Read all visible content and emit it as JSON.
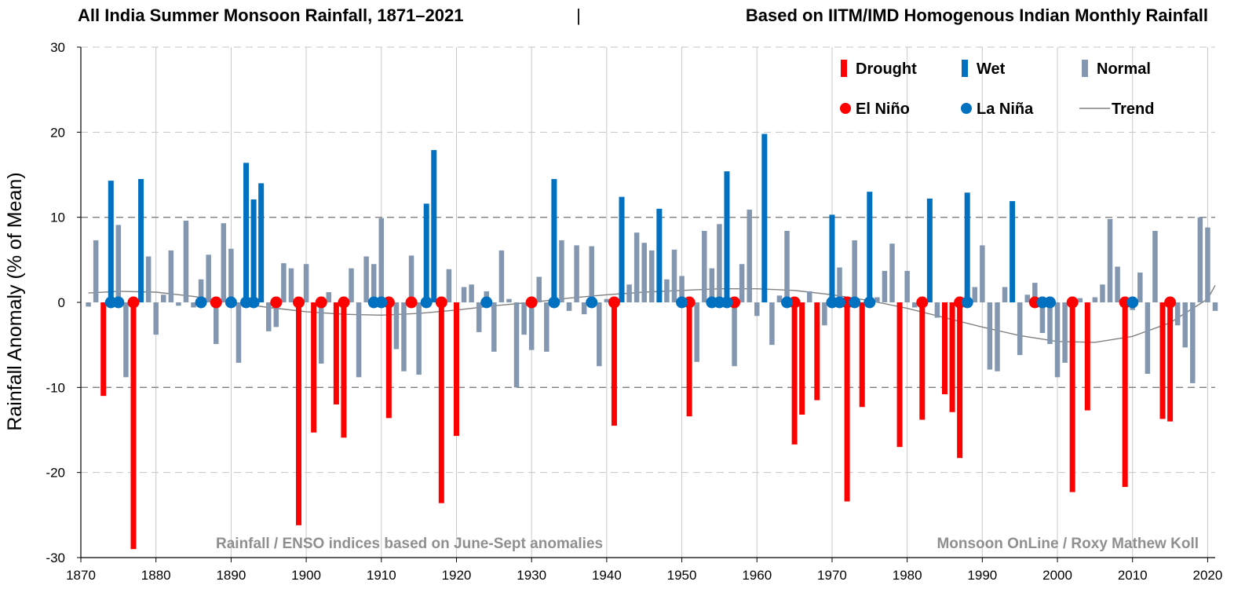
{
  "chart_data": {
    "type": "bar",
    "title": "All India Summer Monsoon Rainfall, 1871–2021",
    "separator": "|",
    "subtitle": "Based on IITM/IMD Homogenous Indian Monthly Rainfall",
    "xlabel": "",
    "ylabel": "Rainfall Anomaly (% of Mean)",
    "xlim": [
      1870,
      2021
    ],
    "ylim": [
      -30,
      30
    ],
    "x_ticks": [
      1870,
      1880,
      1890,
      1900,
      1910,
      1920,
      1930,
      1940,
      1950,
      1960,
      1970,
      1980,
      1990,
      2000,
      2010,
      2020
    ],
    "y_ticks": [
      30,
      20,
      10,
      0,
      -10,
      -20,
      -30
    ],
    "colors": {
      "drought": "#ff0000",
      "wet": "#0070c0",
      "normal": "#8497b0",
      "trend": "#808080",
      "grid": "#c8c8c8"
    },
    "legend": {
      "position": "top-right",
      "drought": "Drought",
      "wet": "Wet",
      "normal": "Normal",
      "el_nino": "El Niño",
      "la_nina": "La Niña",
      "trend": "Trend"
    },
    "annotations": {
      "left_note": "Rainfall / ENSO indices based on June-Sept anomalies",
      "right_note": "Monsoon OnLine / Roxy Mathew Koll"
    },
    "series": [
      {
        "name": "Rainfall anomaly",
        "x": [
          1871,
          1872,
          1873,
          1874,
          1875,
          1876,
          1877,
          1878,
          1879,
          1880,
          1881,
          1882,
          1883,
          1884,
          1885,
          1886,
          1887,
          1888,
          1889,
          1890,
          1891,
          1892,
          1893,
          1894,
          1895,
          1896,
          1897,
          1898,
          1899,
          1900,
          1901,
          1902,
          1903,
          1904,
          1905,
          1906,
          1907,
          1908,
          1909,
          1910,
          1911,
          1912,
          1913,
          1914,
          1915,
          1916,
          1917,
          1918,
          1919,
          1920,
          1921,
          1922,
          1923,
          1924,
          1925,
          1926,
          1927,
          1928,
          1929,
          1930,
          1931,
          1932,
          1933,
          1934,
          1935,
          1936,
          1937,
          1938,
          1939,
          1940,
          1941,
          1942,
          1943,
          1944,
          1945,
          1946,
          1947,
          1948,
          1949,
          1950,
          1951,
          1952,
          1953,
          1954,
          1955,
          1956,
          1957,
          1958,
          1959,
          1960,
          1961,
          1962,
          1963,
          1964,
          1965,
          1966,
          1967,
          1968,
          1969,
          1970,
          1971,
          1972,
          1973,
          1974,
          1975,
          1976,
          1977,
          1978,
          1979,
          1980,
          1981,
          1982,
          1983,
          1984,
          1985,
          1986,
          1987,
          1988,
          1989,
          1990,
          1991,
          1992,
          1993,
          1994,
          1995,
          1996,
          1997,
          1998,
          1999,
          2000,
          2001,
          2002,
          2003,
          2004,
          2005,
          2006,
          2007,
          2008,
          2009,
          2010,
          2011,
          2012,
          2013,
          2014,
          2015,
          2016,
          2017,
          2018,
          2019,
          2020,
          2021
        ],
        "values": [
          -0.5,
          7.3,
          -11,
          14.3,
          9.1,
          -8.8,
          -29,
          14.5,
          5.4,
          -3.8,
          0.9,
          6.1,
          -0.4,
          9.6,
          -0.6,
          2.7,
          5.6,
          -4.9,
          9.3,
          6.3,
          -7.1,
          16.4,
          12.1,
          14.0,
          -3.4,
          -2.9,
          4.6,
          4.0,
          -26.2,
          4.5,
          -15.3,
          -7.2,
          1.2,
          -12.0,
          -15.9,
          4.0,
          -8.8,
          5.4,
          4.5,
          9.9,
          -13.6,
          -5.5,
          -8.1,
          5.5,
          -8.5,
          11.6,
          17.9,
          -23.6,
          3.9,
          -15.7,
          1.8,
          2.1,
          -3.5,
          1.3,
          -5.8,
          6.1,
          0.4,
          -10.0,
          -3.8,
          -5.6,
          3.0,
          -5.8,
          14.5,
          7.3,
          -1.0,
          6.7,
          -1.4,
          6.6,
          -7.5,
          0.4,
          -14.5,
          12.4,
          2.1,
          8.2,
          7.0,
          6.1,
          11.0,
          2.7,
          6.2,
          3.1,
          -13.4,
          -7.0,
          8.4,
          4.0,
          9.2,
          15.4,
          -7.5,
          4.5,
          10.9,
          -1.6,
          19.8,
          -5.0,
          0.8,
          8.4,
          -16.7,
          -13.2,
          1.3,
          -11.5,
          -2.7,
          10.3,
          4.1,
          -23.4,
          7.3,
          -12.3,
          13.0,
          0.6,
          3.7,
          6.9,
          -17.0,
          3.7,
          -0.6,
          -13.8,
          12.2,
          -1.8,
          -10.8,
          -12.9,
          -18.3,
          12.9,
          1.8,
          6.7,
          -7.9,
          -8.1,
          1.8,
          11.9,
          -6.2,
          0.9,
          2.3,
          -3.6,
          -4.9,
          -8.8,
          -7.1,
          -22.3,
          0.5,
          -12.7,
          0.6,
          2.1,
          9.8,
          4.2,
          -21.7,
          -0.9,
          3.5,
          -8.4,
          8.4,
          -13.7,
          -14.0,
          -2.7,
          -5.3,
          -9.5,
          10.0,
          8.8,
          -1.0
        ],
        "category": [
          "N",
          "N",
          "D",
          "W",
          "N",
          "N",
          "D",
          "W",
          "N",
          "N",
          "N",
          "N",
          "N",
          "N",
          "N",
          "N",
          "N",
          "N",
          "N",
          "N",
          "N",
          "W",
          "W",
          "W",
          "N",
          "N",
          "N",
          "N",
          "D",
          "N",
          "D",
          "N",
          "N",
          "D",
          "D",
          "N",
          "N",
          "N",
          "N",
          "N",
          "D",
          "N",
          "N",
          "N",
          "N",
          "W",
          "W",
          "D",
          "N",
          "D",
          "N",
          "N",
          "N",
          "N",
          "N",
          "N",
          "N",
          "N",
          "N",
          "N",
          "N",
          "N",
          "W",
          "N",
          "N",
          "N",
          "N",
          "N",
          "N",
          "N",
          "D",
          "W",
          "N",
          "N",
          "N",
          "N",
          "W",
          "N",
          "N",
          "N",
          "D",
          "N",
          "N",
          "N",
          "N",
          "W",
          "N",
          "N",
          "N",
          "N",
          "W",
          "N",
          "N",
          "N",
          "D",
          "D",
          "N",
          "D",
          "N",
          "W",
          "N",
          "D",
          "N",
          "D",
          "W",
          "N",
          "N",
          "N",
          "D",
          "N",
          "N",
          "D",
          "W",
          "N",
          "D",
          "D",
          "D",
          "W",
          "N",
          "N",
          "N",
          "N",
          "N",
          "W",
          "N",
          "N",
          "N",
          "N",
          "N",
          "N",
          "N",
          "D",
          "N",
          "D",
          "N",
          "N",
          "N",
          "N",
          "D",
          "N",
          "N",
          "N",
          "N",
          "D",
          "D",
          "N",
          "N",
          "N",
          "N",
          "N",
          "N"
        ]
      },
      {
        "name": "El Niño",
        "x": [
          1877,
          1888,
          1896,
          1899,
          1902,
          1905,
          1911,
          1914,
          1918,
          1930,
          1941,
          1951,
          1957,
          1965,
          1972,
          1982,
          1987,
          1997,
          2002,
          2009,
          2015
        ]
      },
      {
        "name": "La Niña",
        "x": [
          1874,
          1875,
          1886,
          1890,
          1892,
          1893,
          1909,
          1910,
          1916,
          1924,
          1933,
          1938,
          1950,
          1954,
          1955,
          1956,
          1964,
          1970,
          1971,
          1973,
          1975,
          1988,
          1998,
          1999,
          2010
        ]
      },
      {
        "name": "Trend",
        "x": [
          1871,
          1875,
          1880,
          1885,
          1890,
          1895,
          1900,
          1905,
          1910,
          1915,
          1920,
          1925,
          1930,
          1935,
          1940,
          1945,
          1950,
          1955,
          1960,
          1965,
          1970,
          1975,
          1980,
          1985,
          1990,
          1995,
          2000,
          2005,
          2010,
          2015,
          2020,
          2021
        ],
        "values": [
          1.1,
          1.3,
          1.2,
          0.7,
          0,
          -0.6,
          -1.1,
          -1.4,
          -1.5,
          -1.3,
          -0.9,
          -0.4,
          0,
          0.5,
          0.9,
          1.2,
          1.4,
          1.6,
          1.6,
          1.4,
          0.9,
          0.2,
          -0.7,
          -1.8,
          -2.9,
          -3.9,
          -4.6,
          -4.7,
          -4.0,
          -2.4,
          0.4,
          2.0
        ]
      }
    ]
  }
}
